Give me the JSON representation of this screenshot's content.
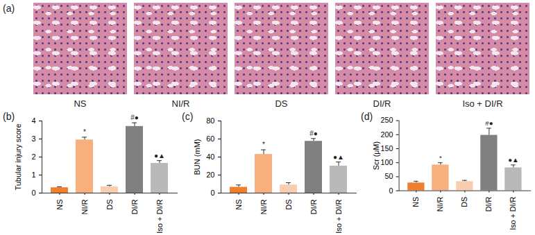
{
  "panel_a": {
    "label": "(a)",
    "images": [
      "NS",
      "NI/R",
      "DS",
      "DI/R",
      "Iso + DI/R"
    ]
  },
  "chart_data": [
    {
      "type": "bar",
      "panel": "(b)",
      "y_label": "Tubular injury score",
      "categories": [
        "NS",
        "NI/R",
        "DS",
        "DI/R",
        "Iso + DI/R"
      ],
      "values": [
        0.3,
        2.95,
        0.35,
        3.7,
        1.65
      ],
      "errors": [
        0.05,
        0.15,
        0.08,
        0.2,
        0.15
      ],
      "annotations": [
        null,
        "*",
        null,
        "#●",
        "●▲"
      ],
      "colors": [
        "#ef7f2f",
        "#f7b07d",
        "#f8cdb0",
        "#808080",
        "#b9b9b9"
      ],
      "ylim": [
        0,
        4
      ],
      "yticks": [
        0,
        1,
        2,
        3,
        4
      ]
    },
    {
      "type": "bar",
      "panel": "(c)",
      "y_label": "BUN (mM)",
      "categories": [
        "NS",
        "NI/R",
        "DS",
        "DI/R",
        "Iso + DI/R"
      ],
      "values": [
        6.5,
        43,
        9,
        57.5,
        30
      ],
      "errors": [
        2.5,
        5,
        2.5,
        3,
        4.5
      ],
      "annotations": [
        null,
        "*",
        null,
        "#●",
        "●▲"
      ],
      "colors": [
        "#ef7f2f",
        "#f7b07d",
        "#f8cdb0",
        "#808080",
        "#b9b9b9"
      ],
      "ylim": [
        0,
        80
      ],
      "yticks": [
        0,
        20,
        40,
        60,
        80
      ]
    },
    {
      "type": "bar",
      "panel": "(d)",
      "y_label": "Scr (μM)",
      "categories": [
        "NS",
        "NI/R",
        "DS",
        "DI/R",
        "Iso + DI/R"
      ],
      "values": [
        28,
        92,
        33,
        198,
        82
      ],
      "errors": [
        6,
        8,
        4,
        25,
        10
      ],
      "annotations": [
        null,
        "*",
        null,
        "#●",
        "●▲"
      ],
      "colors": [
        "#ef7f2f",
        "#f7b07d",
        "#f8cdb0",
        "#808080",
        "#b9b9b9"
      ],
      "ylim": [
        0,
        250
      ],
      "yticks": [
        0,
        50,
        100,
        150,
        200,
        250
      ]
    }
  ]
}
